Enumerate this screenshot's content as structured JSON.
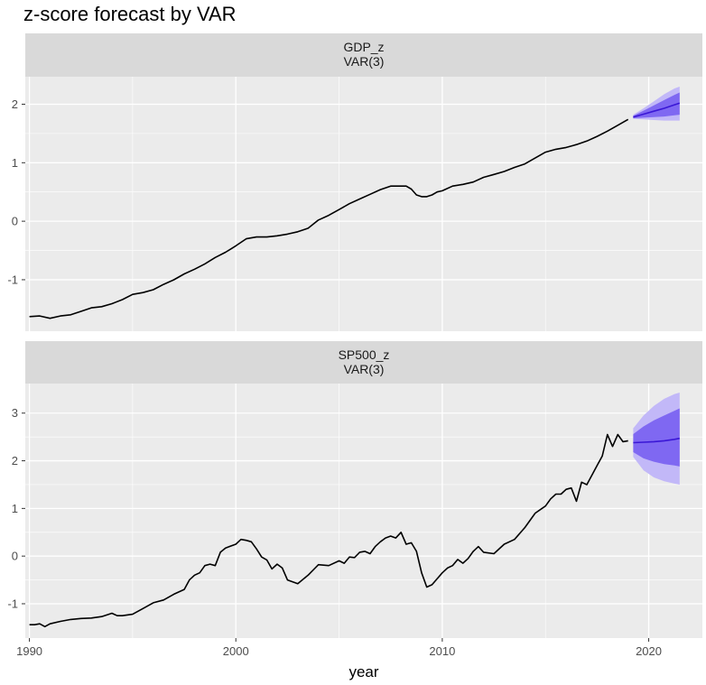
{
  "title": "z-score forecast by VAR",
  "xlabel": "year",
  "colors": {
    "panel_bg": "#ebebeb",
    "strip_bg": "#d9d9d9",
    "grid": "#ffffff",
    "history_line": "#000000",
    "forecast_line": "#3a17d6",
    "band_80": "#7f68f2",
    "band_95": "#c2b8f8"
  },
  "chart_data": {
    "type": "line",
    "xlim": [
      1989.8,
      2022.6
    ],
    "x_ticks": [
      1990,
      2000,
      2010,
      2020
    ],
    "panels": [
      {
        "strip": [
          "GDP_z",
          "VAR(3)"
        ],
        "ylim": [
          -1.88,
          2.47
        ],
        "y_ticks": [
          -1,
          0,
          1,
          2
        ],
        "y_tick_labels": [
          "-1",
          "0",
          "1",
          "2"
        ],
        "history": {
          "x": [
            1990.0,
            1990.5,
            1991.0,
            1991.5,
            1992.0,
            1992.5,
            1993.0,
            1993.5,
            1994.0,
            1994.5,
            1995.0,
            1995.5,
            1996.0,
            1996.5,
            1997.0,
            1997.5,
            1998.0,
            1998.5,
            1999.0,
            1999.5,
            2000.0,
            2000.5,
            2001.0,
            2001.5,
            2002.0,
            2002.5,
            2003.0,
            2003.5,
            2004.0,
            2004.5,
            2005.0,
            2005.5,
            2006.0,
            2006.5,
            2007.0,
            2007.5,
            2008.0,
            2008.25,
            2008.5,
            2008.75,
            2009.0,
            2009.25,
            2009.5,
            2009.75,
            2010.0,
            2010.5,
            2011.0,
            2011.5,
            2012.0,
            2012.5,
            2013.0,
            2013.5,
            2014.0,
            2014.5,
            2015.0,
            2015.5,
            2016.0,
            2016.5,
            2017.0,
            2017.5,
            2018.0,
            2018.5,
            2019.0
          ],
          "y": [
            -1.63,
            -1.62,
            -1.66,
            -1.62,
            -1.6,
            -1.54,
            -1.48,
            -1.46,
            -1.41,
            -1.34,
            -1.25,
            -1.22,
            -1.17,
            -1.08,
            -1.0,
            -0.9,
            -0.82,
            -0.73,
            -0.62,
            -0.53,
            -0.42,
            -0.3,
            -0.27,
            -0.27,
            -0.25,
            -0.22,
            -0.18,
            -0.12,
            0.02,
            0.1,
            0.2,
            0.3,
            0.38,
            0.46,
            0.54,
            0.6,
            0.6,
            0.6,
            0.55,
            0.45,
            0.42,
            0.42,
            0.45,
            0.5,
            0.52,
            0.6,
            0.63,
            0.67,
            0.75,
            0.8,
            0.85,
            0.92,
            0.98,
            1.08,
            1.18,
            1.23,
            1.26,
            1.31,
            1.37,
            1.45,
            1.54,
            1.64,
            1.74
          ]
        },
        "forecast": {
          "x": [
            2019.25,
            2019.75,
            2020.25,
            2020.75,
            2021.25,
            2021.5
          ],
          "mean": [
            1.78,
            1.83,
            1.88,
            1.93,
            1.99,
            2.02
          ],
          "lo80": [
            1.76,
            1.77,
            1.78,
            1.79,
            1.81,
            1.82
          ],
          "hi80": [
            1.8,
            1.89,
            1.98,
            2.07,
            2.16,
            2.2
          ],
          "lo95": [
            1.75,
            1.74,
            1.73,
            1.72,
            1.72,
            1.72
          ],
          "hi95": [
            1.82,
            1.93,
            2.05,
            2.17,
            2.27,
            2.3
          ]
        }
      },
      {
        "strip": [
          "SP500_z",
          "VAR(3)"
        ],
        "ylim": [
          -1.72,
          3.62
        ],
        "y_ticks": [
          -1,
          0,
          1,
          2,
          3
        ],
        "y_tick_labels": [
          "-1",
          "0",
          "1",
          "2",
          "3"
        ],
        "history": {
          "x": [
            1990.0,
            1990.25,
            1990.5,
            1990.75,
            1991.0,
            1991.5,
            1992.0,
            1992.5,
            1993.0,
            1993.5,
            1994.0,
            1994.25,
            1994.5,
            1995.0,
            1995.5,
            1996.0,
            1996.5,
            1997.0,
            1997.5,
            1997.75,
            1998.0,
            1998.25,
            1998.5,
            1998.75,
            1999.0,
            1999.25,
            1999.5,
            2000.0,
            2000.25,
            2000.5,
            2000.75,
            2001.0,
            2001.25,
            2001.5,
            2001.75,
            2002.0,
            2002.25,
            2002.5,
            2003.0,
            2003.5,
            2004.0,
            2004.5,
            2005.0,
            2005.25,
            2005.5,
            2005.75,
            2006.0,
            2006.25,
            2006.5,
            2006.75,
            2007.0,
            2007.25,
            2007.5,
            2007.75,
            2008.0,
            2008.25,
            2008.5,
            2008.75,
            2009.0,
            2009.25,
            2009.5,
            2010.0,
            2010.25,
            2010.5,
            2010.75,
            2011.0,
            2011.25,
            2011.5,
            2011.75,
            2012.0,
            2012.5,
            2013.0,
            2013.5,
            2014.0,
            2014.5,
            2015.0,
            2015.25,
            2015.5,
            2015.75,
            2016.0,
            2016.25,
            2016.5,
            2016.75,
            2017.0,
            2017.5,
            2017.75,
            2018.0,
            2018.25,
            2018.5,
            2018.75,
            2019.0
          ],
          "y": [
            -1.44,
            -1.44,
            -1.42,
            -1.48,
            -1.42,
            -1.37,
            -1.33,
            -1.31,
            -1.3,
            -1.27,
            -1.2,
            -1.25,
            -1.25,
            -1.22,
            -1.1,
            -0.98,
            -0.92,
            -0.8,
            -0.7,
            -0.5,
            -0.4,
            -0.35,
            -0.2,
            -0.17,
            -0.2,
            0.08,
            0.17,
            0.25,
            0.35,
            0.33,
            0.3,
            0.15,
            -0.02,
            -0.08,
            -0.27,
            -0.17,
            -0.25,
            -0.5,
            -0.58,
            -0.4,
            -0.18,
            -0.2,
            -0.1,
            -0.15,
            -0.02,
            -0.03,
            0.08,
            0.1,
            0.05,
            0.2,
            0.3,
            0.38,
            0.42,
            0.38,
            0.5,
            0.25,
            0.28,
            0.1,
            -0.35,
            -0.65,
            -0.6,
            -0.35,
            -0.25,
            -0.2,
            -0.07,
            -0.15,
            -0.05,
            0.1,
            0.2,
            0.08,
            0.05,
            0.25,
            0.35,
            0.6,
            0.9,
            1.05,
            1.2,
            1.3,
            1.3,
            1.4,
            1.43,
            1.15,
            1.55,
            1.5,
            1.9,
            2.1,
            2.55,
            2.3,
            2.55,
            2.4,
            2.42
          ]
        },
        "forecast": {
          "x": [
            2019.25,
            2019.75,
            2020.25,
            2020.75,
            2021.25,
            2021.5
          ],
          "mean": [
            2.38,
            2.39,
            2.4,
            2.42,
            2.45,
            2.47
          ],
          "lo80": [
            2.18,
            2.05,
            1.98,
            1.93,
            1.9,
            1.88
          ],
          "hi80": [
            2.56,
            2.72,
            2.85,
            2.95,
            3.05,
            3.1
          ],
          "lo95": [
            2.08,
            1.8,
            1.65,
            1.57,
            1.52,
            1.5
          ],
          "hi95": [
            2.68,
            2.95,
            3.15,
            3.3,
            3.4,
            3.43
          ]
        }
      }
    ]
  }
}
